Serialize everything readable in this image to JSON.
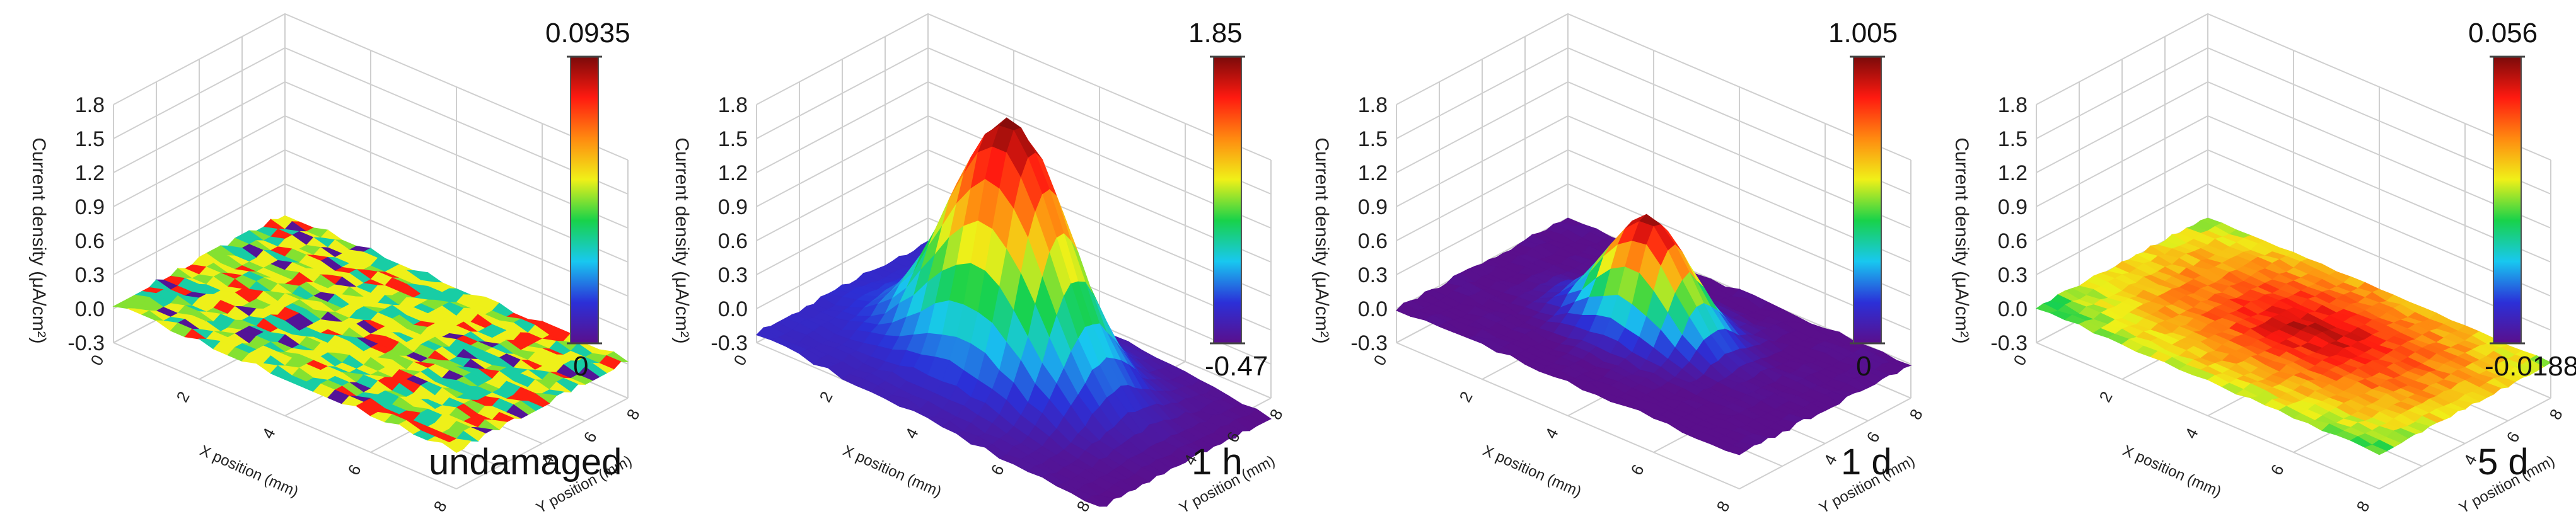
{
  "chart_data": [
    {
      "type": "surface3d",
      "title": "undamaged",
      "zlabel": "Current density (μA/cm²)",
      "xlabel": "X position (mm)",
      "ylabel": "Y position (mm)",
      "z_ticks": [
        "-0.3",
        "0.0",
        "0.3",
        "0.6",
        "0.9",
        "1.2",
        "1.5",
        "1.8"
      ],
      "x_ticks": [
        "0",
        "2",
        "4",
        "6",
        "8"
      ],
      "y_ticks": [
        "4",
        "6",
        "8"
      ],
      "colorbar": {
        "max": "0.0935",
        "min": "0"
      },
      "surface": {
        "shape": "noise",
        "peak": 0.0935,
        "base": 0.0
      }
    },
    {
      "type": "surface3d",
      "title": "1 h",
      "zlabel": "Current density (μA/cm²)",
      "xlabel": "X position (mm)",
      "ylabel": "Y position (mm)",
      "z_ticks": [
        "-0.3",
        "0.0",
        "0.3",
        "0.6",
        "0.9",
        "1.2",
        "1.5",
        "1.8"
      ],
      "x_ticks": [
        "0",
        "2",
        "4",
        "6",
        "8"
      ],
      "y_ticks": [
        "4",
        "6",
        "8"
      ],
      "colorbar": {
        "max": "1.85",
        "min": "-0.47"
      },
      "surface": {
        "shape": "peak",
        "peak": 1.85,
        "base": -0.47
      }
    },
    {
      "type": "surface3d",
      "title": "1 d",
      "zlabel": "Current density (μA/cm²)",
      "xlabel": "X position (mm)",
      "ylabel": "Y position (mm)",
      "z_ticks": [
        "-0.3",
        "0.0",
        "0.3",
        "0.6",
        "0.9",
        "1.2",
        "1.5",
        "1.8"
      ],
      "x_ticks": [
        "0",
        "2",
        "4",
        "6",
        "8"
      ],
      "y_ticks": [
        "4",
        "6",
        "8"
      ],
      "colorbar": {
        "max": "1.005",
        "min": "0"
      },
      "surface": {
        "shape": "peak",
        "peak": 1.005,
        "base": 0.0
      }
    },
    {
      "type": "surface3d",
      "title": "5 d",
      "zlabel": "Current density (μA/cm²)",
      "xlabel": "X position (mm)",
      "ylabel": "Y position (mm)",
      "z_ticks": [
        "-0.3",
        "0.0",
        "0.3",
        "0.6",
        "0.9",
        "1.2",
        "1.5",
        "1.8"
      ],
      "x_ticks": [
        "0",
        "2",
        "4",
        "6",
        "8"
      ],
      "y_ticks": [
        "4",
        "6",
        "8"
      ],
      "colorbar": {
        "max": "0.056",
        "min": "-0.0188"
      },
      "surface": {
        "shape": "flat",
        "peak": 0.056,
        "base": -0.0188
      }
    }
  ],
  "colormap": [
    "#5a0f8c",
    "#2b30d8",
    "#18c8f0",
    "#18d24a",
    "#f0f018",
    "#ff8a10",
    "#ff1a10",
    "#7a0a0a"
  ]
}
